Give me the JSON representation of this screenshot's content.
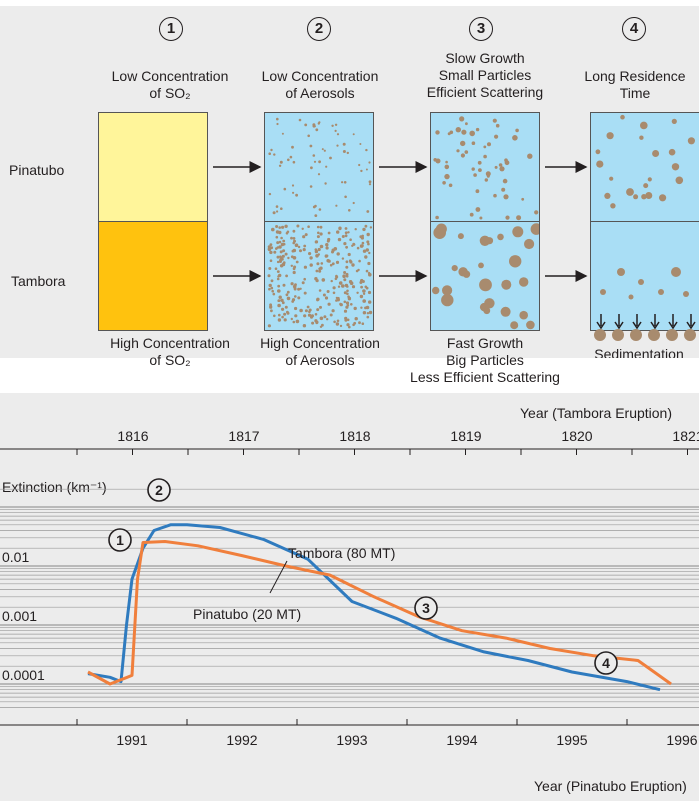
{
  "steps": [
    "1",
    "2",
    "3",
    "4"
  ],
  "top": {
    "captions_top": [
      [
        "Low Concentration",
        "of SO₂"
      ],
      [
        "Low Concentration",
        "of Aerosols"
      ],
      [
        "Slow Growth",
        "Small Particles",
        "Efficient Scattering"
      ],
      [
        "Long Residence",
        "Time"
      ]
    ],
    "captions_bottom": [
      [
        "High Concentration",
        "of SO₂"
      ],
      [
        "High Concentration",
        "of Aerosols"
      ],
      [
        "Fast Growth",
        "Big Particles",
        "Less Efficient Scattering"
      ],
      [
        "Sedimentation"
      ]
    ],
    "row_labels": [
      "Pinatubo",
      "Tambora"
    ],
    "colors": {
      "so2_low": "#fff59a",
      "so2_high": "#ffc20e",
      "aerosol_bg": "#a9def5",
      "particle": "#a88b6e"
    }
  },
  "chart_data": {
    "type": "line",
    "y_scale": "log",
    "ylabel": "Extinction (km⁻¹)",
    "y_ticks": [
      "0.01",
      "0.001",
      "0.0001"
    ],
    "top_axis_label": "Year (Tambora Eruption)",
    "top_ticks": [
      "1816",
      "1817",
      "1818",
      "1819",
      "1820",
      "1821"
    ],
    "bottom_axis_label": "Year (Pinatubo Eruption)",
    "bottom_ticks": [
      "1991",
      "1992",
      "1993",
      "1994",
      "1995",
      "1996"
    ],
    "series": [
      {
        "name": "Tambora (80 MT)",
        "color": "#2f7bbf",
        "x": [
          1990.6,
          1990.8,
          1990.9,
          1990.95,
          1991.0,
          1991.1,
          1991.2,
          1991.35,
          1991.5,
          1991.8,
          1992.2,
          1992.6,
          1993.0,
          1993.4,
          1993.8,
          1994.2,
          1994.6,
          1995.0,
          1995.5,
          1995.8
        ],
        "y": [
          0.00015,
          0.00013,
          0.00011,
          0.001,
          0.006,
          0.02,
          0.04,
          0.05,
          0.05,
          0.045,
          0.028,
          0.013,
          0.0025,
          0.0013,
          0.0006,
          0.00035,
          0.00025,
          0.00016,
          0.00011,
          8e-05
        ]
      },
      {
        "name": "Pinatubo (20 MT)",
        "color": "#f07f3c",
        "x": [
          1990.6,
          1990.8,
          1991.0,
          1991.05,
          1991.1,
          1991.3,
          1991.6,
          1992.0,
          1992.4,
          1992.8,
          1993.2,
          1993.6,
          1994.0,
          1994.4,
          1994.8,
          1995.2,
          1995.6,
          1995.9
        ],
        "y": [
          0.00016,
          0.0001,
          0.00014,
          0.006,
          0.025,
          0.026,
          0.022,
          0.015,
          0.01,
          0.007,
          0.003,
          0.0014,
          0.0008,
          0.0006,
          0.0004,
          0.0003,
          0.00025,
          0.0001
        ]
      }
    ],
    "markers": [
      "1",
      "2",
      "3",
      "4"
    ]
  }
}
